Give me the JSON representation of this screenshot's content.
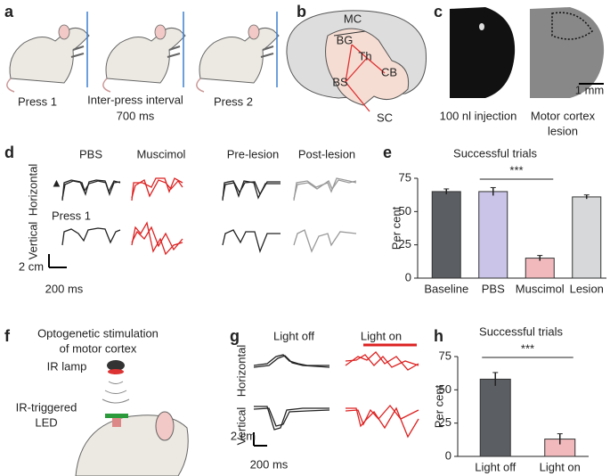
{
  "panel_labels": [
    "a",
    "b",
    "c",
    "d",
    "e",
    "f",
    "g",
    "h"
  ],
  "panel_a": {
    "press_1": "Press 1",
    "interval": "Inter-press interval",
    "interval_value": "700 ms",
    "press_2": "Press 2"
  },
  "panel_b": {
    "labels": [
      "MC",
      "BG",
      "Th",
      "CB",
      "BS",
      "SC"
    ]
  },
  "panel_c": {
    "scale": "1 mm",
    "caption_1": "100 nl injection",
    "caption_2": [
      "Motor cortex",
      "lesion"
    ]
  },
  "panel_d": {
    "columns": [
      "PBS",
      "Muscimol",
      "Pre-lesion",
      "Post-lesion"
    ],
    "rows": [
      "Horizontal",
      "Vertical"
    ],
    "trace_label": "Press 1",
    "scale_y": "2 cm",
    "scale_x": "200 ms"
  },
  "panel_e": {
    "type": "bar",
    "title": "Successful trials",
    "y_label": "Per cent",
    "categories": [
      "Baseline",
      "PBS",
      "Muscimol",
      "Lesion"
    ],
    "values": [
      65,
      65,
      15,
      61
    ],
    "errors": [
      2,
      3,
      2,
      1.5
    ],
    "colors": [
      "#5b5e63",
      "#c9c4e8",
      "#f2b9bd",
      "#d6d8d9"
    ],
    "ylim": [
      0,
      75
    ],
    "yticks": [
      0,
      25,
      50,
      75
    ],
    "significance": "***"
  },
  "panel_f": {
    "title": [
      "Optogenetic stimulation",
      "of motor cortex"
    ],
    "lamp": "IR lamp",
    "led": [
      "IR-triggered",
      "LED"
    ]
  },
  "panel_g": {
    "columns": [
      "Light off",
      "Light on"
    ],
    "rows": [
      "Horizontal",
      "Vertical"
    ],
    "scale_y": "2 cm",
    "scale_x": "200 ms"
  },
  "panel_h": {
    "type": "bar",
    "title": "Successful trials",
    "y_label": "Per cent",
    "categories": [
      "Light off",
      "Light on"
    ],
    "values": [
      58,
      13
    ],
    "errors": [
      5,
      4
    ],
    "colors": [
      "#5b5e63",
      "#f2b9bd"
    ],
    "ylim": [
      0,
      75
    ],
    "yticks": [
      0,
      25,
      50,
      75
    ],
    "significance": "***"
  }
}
